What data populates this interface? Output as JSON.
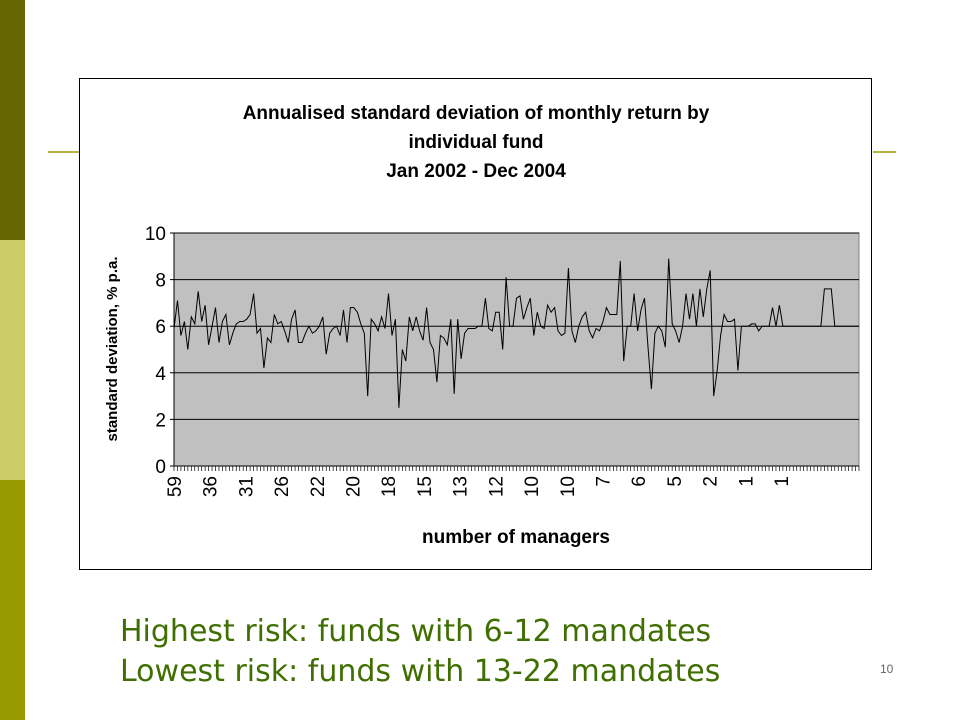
{
  "slide": {
    "caption_line1": "Highest risk: funds with 6-12 mandates",
    "caption_line2": "Lowest risk: funds with 13-22 mandates",
    "page_number": "10",
    "colors": {
      "sidebar_dark": "#666600",
      "sidebar_light": "#cccc66",
      "sidebar_mid": "#999900",
      "caption_text": "#3f6f00",
      "plot_background": "#c0c0c0"
    }
  },
  "chart_data": {
    "type": "line",
    "title_lines": [
      "Annualised standard deviation of monthly return by",
      "individual fund",
      "Jan 2002 - Dec 2004"
    ],
    "xlabel": "number of managers",
    "ylabel": "standard deviation, % p.a.",
    "ylim": [
      0,
      10
    ],
    "yticks": [
      0,
      2,
      4,
      6,
      8,
      10
    ],
    "grid": true,
    "x_tick_labels": [
      "59",
      "36",
      "31",
      "26",
      "22",
      "20",
      "18",
      "15",
      "13",
      "12",
      "10",
      "10",
      "7",
      "6",
      "5",
      "2",
      "1",
      "1"
    ],
    "series": [
      {
        "values": [
          5.9,
          7.1,
          5.6,
          6.2,
          5.0,
          6.4,
          6.1,
          7.5,
          6.2,
          6.9,
          5.2,
          6.0,
          6.8,
          5.3,
          6.2,
          6.5,
          5.2,
          5.7,
          6.1,
          6.2,
          6.2,
          6.3,
          6.5,
          7.4,
          5.7,
          5.9,
          4.2,
          5.5,
          5.3,
          6.5,
          6.1,
          6.2,
          5.8,
          5.3,
          6.3,
          6.7,
          5.3,
          5.3,
          5.7,
          6.0,
          5.7,
          5.8,
          6.0,
          6.4,
          4.8,
          5.7,
          5.9,
          6.0,
          5.6,
          6.7,
          5.3,
          6.8,
          6.8,
          6.6,
          6.1,
          5.7,
          3.0,
          6.3,
          6.1,
          5.8,
          6.4,
          5.9,
          7.4,
          5.6,
          6.3,
          2.5,
          5.0,
          4.5,
          6.4,
          5.8,
          6.4,
          5.8,
          5.4,
          6.8,
          5.3,
          5.0,
          3.6,
          5.6,
          5.5,
          5.2,
          6.3,
          3.1,
          6.3,
          4.6,
          5.7,
          5.9,
          5.9,
          5.9,
          6.0,
          6.0,
          7.2,
          5.9,
          5.8,
          6.6,
          6.6,
          5.0,
          8.1,
          6.0,
          6.0,
          7.2,
          7.3,
          6.3,
          6.8,
          7.2,
          5.6,
          6.6,
          6.0,
          5.9,
          6.9,
          6.6,
          6.8,
          5.8,
          5.6,
          5.7,
          8.5,
          5.8,
          5.3,
          6.0,
          6.4,
          6.6,
          5.8,
          5.5,
          5.9,
          5.8,
          6.2,
          6.8,
          6.5,
          6.5,
          6.5,
          8.8,
          4.5,
          6.0,
          6.0,
          7.4,
          5.8,
          6.7,
          7.2,
          5.1,
          3.3,
          5.7,
          6.0,
          5.8,
          5.1,
          8.9,
          6.1,
          5.8,
          5.3,
          6.0,
          7.4,
          6.3,
          7.4,
          6.0,
          7.6,
          6.4,
          7.6,
          8.4,
          3.0,
          4.1,
          5.6,
          6.5,
          6.2,
          6.2,
          6.3,
          4.1,
          6.0,
          6.0,
          6.0,
          6.1,
          6.1,
          5.8,
          6.0,
          6.0,
          6.0,
          6.8,
          6.0,
          6.9,
          6.0,
          6.0,
          6.0,
          6.0,
          6.0,
          6.0,
          6.0,
          6.0,
          6.0,
          6.0,
          6.0,
          6.0,
          7.6,
          7.6,
          7.6,
          6.0,
          6.0,
          6.0,
          6.0,
          6.0,
          6.0,
          6.0,
          6.0
        ]
      }
    ]
  }
}
